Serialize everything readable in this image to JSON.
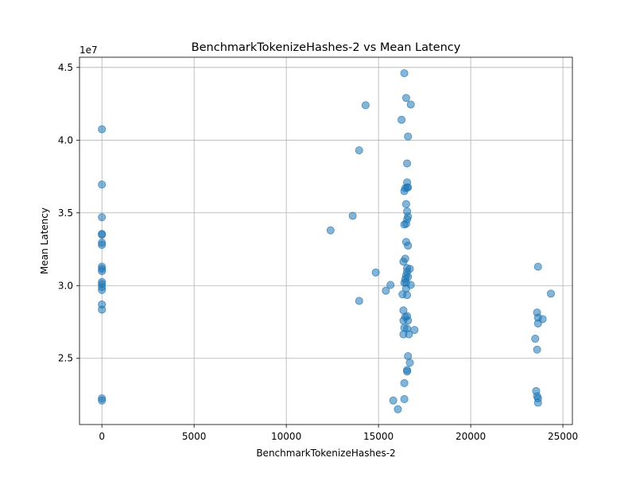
{
  "chart_data": {
    "type": "scatter",
    "title": "BenchmarkTokenizeHashes-2 vs Mean Latency",
    "xlabel": "BenchmarkTokenizeHashes-2",
    "ylabel": "Mean Latency",
    "y_offset_label": "1e7",
    "xlim": [
      -1215,
      25515
    ],
    "ylim": [
      20450000,
      45700000
    ],
    "xticks": [
      0,
      5000,
      10000,
      15000,
      20000,
      25000
    ],
    "xtick_labels": [
      "0",
      "5000",
      "10000",
      "15000",
      "20000",
      "25000"
    ],
    "yticks": [
      25000000,
      30000000,
      35000000,
      40000000,
      45000000
    ],
    "ytick_labels": [
      "2.5",
      "3.0",
      "3.5",
      "4.0",
      "4.5"
    ],
    "grid": true,
    "point_color": "#1f77b4",
    "point_alpha": 0.55,
    "points": [
      [
        0,
        40750000
      ],
      [
        0,
        36950000
      ],
      [
        0,
        34700000
      ],
      [
        0,
        33550000
      ],
      [
        0,
        33500000
      ],
      [
        0,
        32950000
      ],
      [
        0,
        32800000
      ],
      [
        0,
        31300000
      ],
      [
        0,
        31150000
      ],
      [
        0,
        31000000
      ],
      [
        0,
        30250000
      ],
      [
        0,
        30100000
      ],
      [
        0,
        29900000
      ],
      [
        0,
        29700000
      ],
      [
        0,
        28700000
      ],
      [
        0,
        28350000
      ],
      [
        0,
        22250000
      ],
      [
        0,
        22100000
      ],
      [
        12400,
        33800000
      ],
      [
        13600,
        34800000
      ],
      [
        13950,
        39300000
      ],
      [
        13950,
        28950000
      ],
      [
        14300,
        42400000
      ],
      [
        14850,
        30900000
      ],
      [
        15400,
        29650000
      ],
      [
        15650,
        30050000
      ],
      [
        15800,
        22100000
      ],
      [
        16050,
        21500000
      ],
      [
        16250,
        41400000
      ],
      [
        16300,
        29400000
      ],
      [
        16350,
        31650000
      ],
      [
        16350,
        28300000
      ],
      [
        16350,
        27600000
      ],
      [
        16350,
        26650000
      ],
      [
        16400,
        44600000
      ],
      [
        16400,
        36500000
      ],
      [
        16400,
        34200000
      ],
      [
        16400,
        30200000
      ],
      [
        16400,
        27100000
      ],
      [
        16400,
        23300000
      ],
      [
        16400,
        22200000
      ],
      [
        16450,
        36700000
      ],
      [
        16450,
        31850000
      ],
      [
        16450,
        30450000
      ],
      [
        16450,
        27850000
      ],
      [
        16500,
        42900000
      ],
      [
        16500,
        35600000
      ],
      [
        16500,
        34250000
      ],
      [
        16500,
        33000000
      ],
      [
        16500,
        30700000
      ],
      [
        16500,
        30200000
      ],
      [
        16500,
        29800000
      ],
      [
        16550,
        38400000
      ],
      [
        16550,
        37100000
      ],
      [
        16550,
        36750000
      ],
      [
        16550,
        35100000
      ],
      [
        16550,
        34550000
      ],
      [
        16550,
        31200000
      ],
      [
        16550,
        30950000
      ],
      [
        16550,
        29350000
      ],
      [
        16550,
        27900000
      ],
      [
        16550,
        27050000
      ],
      [
        16550,
        24200000
      ],
      [
        16550,
        24100000
      ],
      [
        16600,
        40250000
      ],
      [
        16600,
        36750000
      ],
      [
        16600,
        34750000
      ],
      [
        16600,
        32750000
      ],
      [
        16600,
        30600000
      ],
      [
        16600,
        27600000
      ],
      [
        16600,
        25150000
      ],
      [
        16650,
        26650000
      ],
      [
        16700,
        24700000
      ],
      [
        16700,
        31150000
      ],
      [
        16750,
        42450000
      ],
      [
        16750,
        30050000
      ],
      [
        16950,
        26950000
      ],
      [
        23500,
        26350000
      ],
      [
        23550,
        22750000
      ],
      [
        23600,
        28150000
      ],
      [
        23600,
        25600000
      ],
      [
        23600,
        22400000
      ],
      [
        23650,
        31300000
      ],
      [
        23650,
        27800000
      ],
      [
        23650,
        27400000
      ],
      [
        23650,
        22250000
      ],
      [
        23650,
        21950000
      ],
      [
        23900,
        27700000
      ],
      [
        24350,
        29450000
      ]
    ]
  }
}
